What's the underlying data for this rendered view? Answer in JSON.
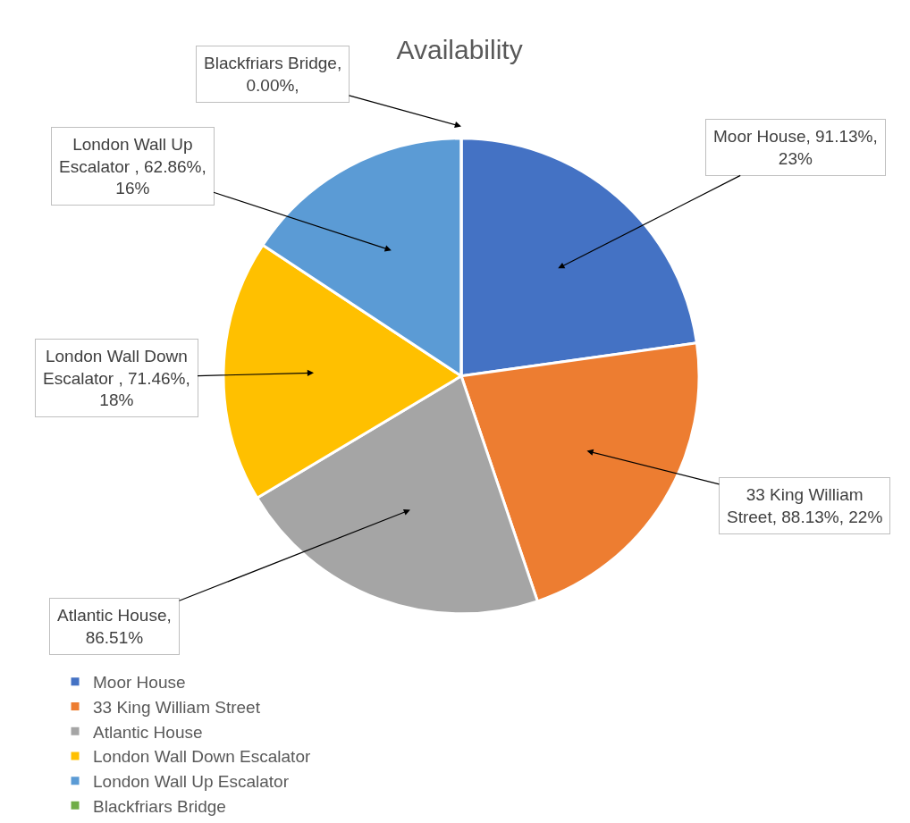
{
  "chart_data": {
    "type": "pie",
    "title": "Availability",
    "categories": [
      "Moor House",
      "33 King William Street",
      "Atlantic House",
      "London Wall Down Escalator",
      "London Wall Up Escalator",
      "Blackfriars Bridge"
    ],
    "values": [
      91.13,
      88.13,
      86.51,
      71.46,
      62.86,
      0
    ],
    "colors": [
      "#4472c4",
      "#ed7d31",
      "#a5a5a5",
      "#ffc000",
      "#5b9bd5",
      "#70ad47"
    ],
    "value_labels": [
      "Moor House, 91.13%, 23%",
      "33 King William Street, 88.13%, 22%",
      "Atlantic House, 86.51%",
      "London Wall Down Escalator , 71.46%, 18%",
      "London Wall Up Escalator , 62.86%, 16%",
      "Blackfriars Bridge, 0.00%,"
    ],
    "legend": "bottom"
  }
}
